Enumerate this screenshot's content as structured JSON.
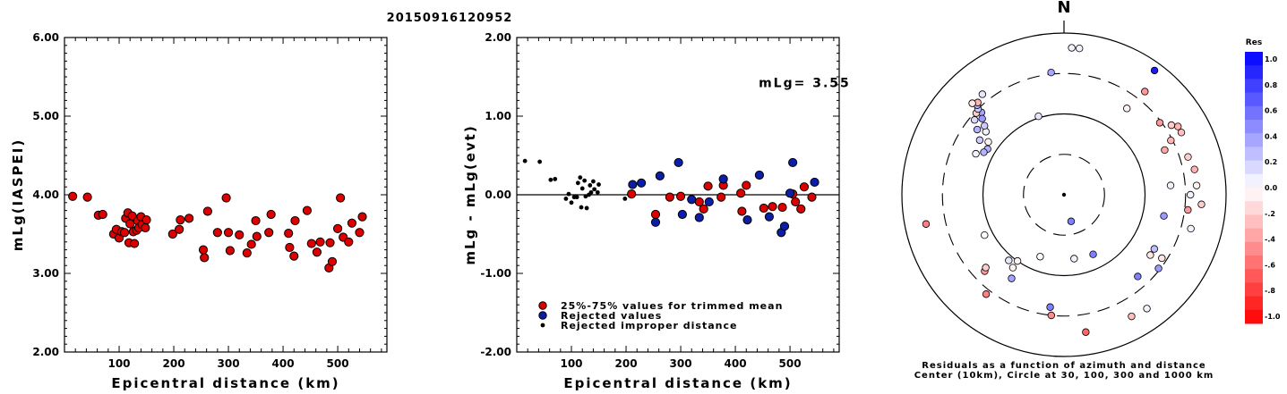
{
  "figure": {
    "title": "20150916120952",
    "colors": {
      "red": "#dd0000",
      "blue": "#0a1ea8",
      "black": "#000000"
    }
  },
  "chart_data": [
    {
      "type": "scatter",
      "ylabel": "mLg(IASPEI)",
      "xlabel": "Epicentral distance (km)",
      "xlim": [
        0,
        590
      ],
      "ylim": [
        2.0,
        6.0
      ],
      "xticks": [
        100,
        200,
        300,
        400,
        500
      ],
      "yticks": [
        "2.00",
        "3.00",
        "4.00",
        "5.00",
        "6.00"
      ],
      "series": [
        {
          "marker": "red-circle",
          "points": [
            [
              15,
              3.98
            ],
            [
              42,
              3.97
            ],
            [
              62,
              3.74
            ],
            [
              70,
              3.75
            ],
            [
              90,
              3.5
            ],
            [
              95,
              3.56
            ],
            [
              100,
              3.45
            ],
            [
              105,
              3.53
            ],
            [
              110,
              3.52
            ],
            [
              112,
              3.7
            ],
            [
              116,
              3.77
            ],
            [
              118,
              3.39
            ],
            [
              120,
              3.63
            ],
            [
              124,
              3.73
            ],
            [
              126,
              3.53
            ],
            [
              128,
              3.38
            ],
            [
              132,
              3.55
            ],
            [
              134,
              3.67
            ],
            [
              136,
              3.58
            ],
            [
              140,
              3.72
            ],
            [
              142,
              3.62
            ],
            [
              148,
              3.58
            ],
            [
              150,
              3.68
            ],
            [
              198,
              3.5
            ],
            [
              210,
              3.56
            ],
            [
              212,
              3.68
            ],
            [
              228,
              3.7
            ],
            [
              254,
              3.3
            ],
            [
              256,
              3.2
            ],
            [
              262,
              3.79
            ],
            [
              280,
              3.52
            ],
            [
              296,
              3.96
            ],
            [
              300,
              3.52
            ],
            [
              303,
              3.29
            ],
            [
              320,
              3.49
            ],
            [
              334,
              3.26
            ],
            [
              342,
              3.37
            ],
            [
              350,
              3.67
            ],
            [
              352,
              3.47
            ],
            [
              374,
              3.52
            ],
            [
              378,
              3.75
            ],
            [
              410,
              3.51
            ],
            [
              412,
              3.33
            ],
            [
              420,
              3.22
            ],
            [
              422,
              3.67
            ],
            [
              444,
              3.8
            ],
            [
              452,
              3.38
            ],
            [
              462,
              3.27
            ],
            [
              468,
              3.4
            ],
            [
              484,
              3.07
            ],
            [
              486,
              3.39
            ],
            [
              490,
              3.15
            ],
            [
              500,
              3.57
            ],
            [
              505,
              3.96
            ],
            [
              510,
              3.46
            ],
            [
              520,
              3.4
            ],
            [
              526,
              3.64
            ],
            [
              540,
              3.52
            ],
            [
              545,
              3.72
            ]
          ]
        }
      ]
    },
    {
      "type": "scatter",
      "ylabel": "mLg - mLg(evt)",
      "xlabel": "Epicentral distance (km)",
      "annotation": "mLg= 3.55",
      "xlim": [
        0,
        590
      ],
      "ylim": [
        -2.0,
        2.0
      ],
      "xticks": [
        100,
        200,
        300,
        400,
        500
      ],
      "yticks": [
        "-2.00",
        "-1.00",
        "0.00",
        "1.00",
        "2.00"
      ],
      "zero_line": true,
      "series": [
        {
          "name": "25%-75% values for trimmed mean",
          "marker": "red-circle",
          "points": [
            [
              210,
              0.01
            ],
            [
              254,
              -0.25
            ],
            [
              280,
              -0.03
            ],
            [
              300,
              -0.02
            ],
            [
              334,
              -0.09
            ],
            [
              342,
              -0.18
            ],
            [
              350,
              0.11
            ],
            [
              374,
              -0.03
            ],
            [
              378,
              0.12
            ],
            [
              410,
              0.02
            ],
            [
              412,
              -0.21
            ],
            [
              420,
              0.12
            ],
            [
              452,
              -0.17
            ],
            [
              468,
              -0.15
            ],
            [
              486,
              -0.16
            ],
            [
              505,
              0.01
            ],
            [
              510,
              -0.09
            ],
            [
              520,
              -0.18
            ],
            [
              526,
              0.1
            ],
            [
              540,
              -0.03
            ]
          ]
        },
        {
          "name": "Rejected values",
          "marker": "blue-circle",
          "points": [
            [
              212,
              0.13
            ],
            [
              228,
              0.15
            ],
            [
              254,
              -0.35
            ],
            [
              262,
              0.24
            ],
            [
              296,
              0.41
            ],
            [
              303,
              -0.25
            ],
            [
              320,
              -0.06
            ],
            [
              334,
              -0.29
            ],
            [
              352,
              -0.09
            ],
            [
              378,
              0.2
            ],
            [
              422,
              -0.32
            ],
            [
              444,
              0.25
            ],
            [
              462,
              -0.28
            ],
            [
              484,
              -0.48
            ],
            [
              490,
              -0.4
            ],
            [
              500,
              0.02
            ],
            [
              505,
              0.41
            ],
            [
              545,
              0.16
            ]
          ]
        },
        {
          "name": "Rejected improper distance",
          "marker": "black-dot",
          "points": [
            [
              15,
              0.43
            ],
            [
              42,
              0.42
            ],
            [
              62,
              0.19
            ],
            [
              70,
              0.2
            ],
            [
              90,
              -0.05
            ],
            [
              95,
              0.01
            ],
            [
              100,
              -0.1
            ],
            [
              105,
              -0.03
            ],
            [
              110,
              -0.03
            ],
            [
              112,
              0.15
            ],
            [
              116,
              0.22
            ],
            [
              118,
              -0.16
            ],
            [
              120,
              0.08
            ],
            [
              124,
              0.18
            ],
            [
              126,
              -0.02
            ],
            [
              128,
              -0.17
            ],
            [
              132,
              0.0
            ],
            [
              134,
              0.12
            ],
            [
              136,
              0.03
            ],
            [
              140,
              0.17
            ],
            [
              142,
              0.07
            ],
            [
              148,
              0.03
            ],
            [
              150,
              0.13
            ],
            [
              198,
              -0.05
            ]
          ]
        }
      ]
    },
    {
      "type": "polar-scatter",
      "north_label": "N",
      "caption_line1": "Residuals as a function of azimuth and distance",
      "caption_line2": "Center (10km), Circle at 30, 100, 300 and 1000 km",
      "colorbar_title": "Res",
      "colorbar_ticks": [
        "1.0",
        "0.8",
        "0.6",
        "0.4",
        "0.2",
        "0.0",
        "-.2",
        "-.4",
        "-.6",
        "-.8",
        "-1.0"
      ],
      "points": [
        [
          36,
          0.95,
          0.9
        ],
        [
          3,
          0.91,
          0.05
        ],
        [
          6,
          0.91,
          0.05
        ],
        [
          38,
          0.81,
          -0.4
        ],
        [
          36,
          0.66,
          -0.05
        ],
        [
          315,
          0.8,
          0.1
        ],
        [
          321,
          0.8,
          0.1
        ],
        [
          309,
          0.62,
          0.05
        ],
        [
          305,
          0.57,
          -0.05
        ],
        [
          310,
          0.72,
          0.15
        ],
        [
          307,
          0.67,
          0.3
        ],
        [
          315,
          0.72,
          0.35
        ],
        [
          313,
          0.69,
          0.4
        ],
        [
          311,
          0.65,
          0.2
        ],
        [
          313,
          0.74,
          -0.2
        ],
        [
          315,
          0.75,
          0.2
        ],
        [
          316,
          0.77,
          0.3
        ],
        [
          317,
          0.78,
          -0.3
        ],
        [
          315,
          0.8,
          -0.1
        ],
        [
          301,
          0.55,
          0.3
        ],
        [
          298,
          0.56,
          0.3
        ],
        [
          303,
          0.62,
          0.2
        ],
        [
          295,
          0.6,
          0.05
        ],
        [
          342,
          0.51,
          0.1
        ],
        [
          354,
          0.76,
          0.35
        ],
        [
          53,
          0.74,
          -0.4
        ],
        [
          57,
          0.79,
          -0.2
        ],
        [
          59,
          0.82,
          -0.3
        ],
        [
          63,
          0.74,
          -0.3
        ],
        [
          66,
          0.68,
          -0.35
        ],
        [
          62,
          0.82,
          -0.25
        ],
        [
          73,
          0.8,
          -0.2
        ],
        [
          79,
          0.82,
          -0.3
        ],
        [
          85,
          0.66,
          0.05
        ],
        [
          86,
          0.82,
          -0.05
        ],
        [
          90,
          0.78,
          0.05
        ],
        [
          94,
          0.85,
          -0.2
        ],
        [
          97,
          0.77,
          -0.4
        ],
        [
          102,
          0.63,
          0.4
        ],
        [
          105,
          0.81,
          0.05
        ],
        [
          121,
          0.65,
          0.25
        ],
        [
          125,
          0.65,
          -0.1
        ],
        [
          123,
          0.72,
          -0.1
        ],
        [
          128,
          0.74,
          0.4
        ],
        [
          138,
          0.68,
          0.5
        ],
        [
          144,
          0.87,
          0.05
        ],
        [
          151,
          0.86,
          -0.25
        ],
        [
          154,
          0.41,
          0.5
        ],
        [
          165,
          0.17,
          0.5
        ],
        [
          171,
          0.86,
          -0.6
        ],
        [
          171,
          0.4,
          0.05
        ],
        [
          186,
          0.75,
          -0.45
        ],
        [
          187,
          0.7,
          0.5
        ],
        [
          201,
          0.41,
          0.02
        ],
        [
          215,
          0.5,
          -0.05
        ],
        [
          215,
          0.55,
          -0.05
        ],
        [
          220,
          0.53,
          0.1
        ],
        [
          218,
          0.78,
          -0.5
        ],
        [
          226,
          0.68,
          -0.4
        ],
        [
          227,
          0.66,
          -0.2
        ],
        [
          212,
          0.61,
          0.35
        ],
        [
          258,
          0.87,
          -0.5
        ],
        [
          243,
          0.55,
          -0.02
        ]
      ]
    }
  ]
}
